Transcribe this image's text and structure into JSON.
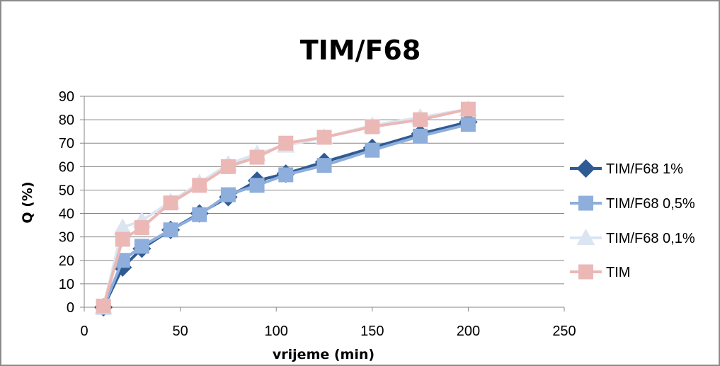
{
  "chart_data": {
    "type": "line",
    "title": "TIM/F68",
    "xlabel": "vrijeme (min)",
    "ylabel": "Q (%)",
    "xlim": [
      0,
      250
    ],
    "ylim": [
      0,
      90
    ],
    "xticks": [
      0,
      50,
      100,
      150,
      200,
      250
    ],
    "yticks": [
      0,
      10,
      20,
      30,
      40,
      50,
      60,
      70,
      80,
      90
    ],
    "grid": "horizontal",
    "legend_position": "right",
    "series": [
      {
        "name": "TIM/F68 1%",
        "marker": "diamond",
        "color": "#2e5b93",
        "x": [
          10,
          20,
          30,
          45,
          60,
          75,
          90,
          105,
          125,
          150,
          175,
          200
        ],
        "y": [
          0,
          17,
          25,
          33,
          40,
          47,
          54,
          57,
          62,
          68,
          74,
          79
        ]
      },
      {
        "name": "TIM/F68 0,5%",
        "marker": "square",
        "color": "#8eaedc",
        "x": [
          10,
          20,
          30,
          45,
          60,
          75,
          90,
          105,
          125,
          150,
          175,
          200
        ],
        "y": [
          0,
          20,
          26,
          33,
          39.5,
          48,
          52,
          56.5,
          60.5,
          67,
          73,
          78
        ]
      },
      {
        "name": "TIM/F68 0,1%",
        "marker": "triangle",
        "color": "#dbe5f1",
        "x": [
          10,
          20,
          30,
          45,
          60,
          75,
          90,
          105,
          125,
          150,
          175,
          200
        ],
        "y": [
          0,
          34,
          37,
          45,
          53,
          61,
          65.5,
          69,
          72.5,
          77.5,
          81,
          84.5
        ]
      },
      {
        "name": "TIM",
        "marker": "square",
        "color": "#ebb8b6",
        "x": [
          10,
          20,
          30,
          45,
          60,
          75,
          90,
          105,
          125,
          150,
          175,
          200
        ],
        "y": [
          0.5,
          29,
          34,
          44.5,
          52,
          60,
          64,
          70,
          72.5,
          77,
          80,
          84.5
        ]
      }
    ]
  }
}
